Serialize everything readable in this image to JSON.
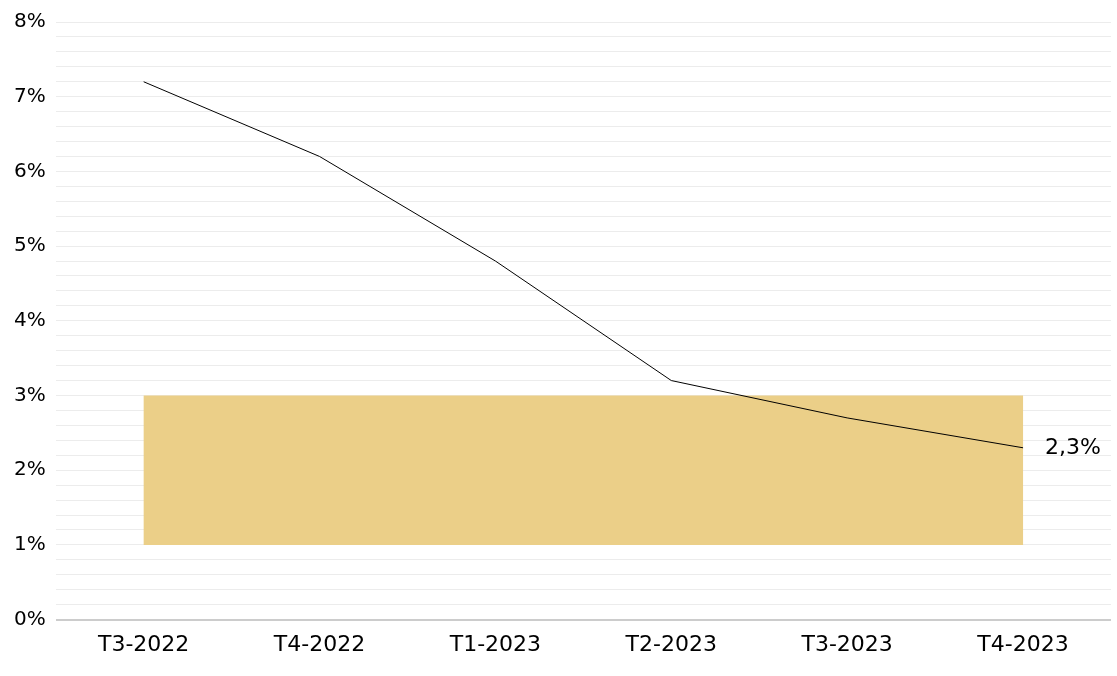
{
  "chart_data": {
    "type": "line",
    "categories": [
      "T3-2022",
      "T4-2022",
      "T1-2023",
      "T2-2023",
      "T3-2023",
      "T4-2023"
    ],
    "series": [
      {
        "color": "#000000",
        "values": [
          7.2,
          6.2,
          4.8,
          3.2,
          2.7,
          2.3
        ]
      }
    ],
    "ylim": [
      0,
      8
    ],
    "yticks": [
      {
        "value": 0,
        "label": "0%"
      },
      {
        "value": 0.2,
        "label": null
      },
      {
        "value": 0.4,
        "label": null
      },
      {
        "value": 0.6,
        "label": null
      },
      {
        "value": 0.8,
        "label": null
      },
      {
        "value": 1,
        "label": "1%"
      },
      {
        "value": 1.2,
        "label": null
      },
      {
        "value": 1.4,
        "label": null
      },
      {
        "value": 1.6,
        "label": null
      },
      {
        "value": 1.8,
        "label": null
      },
      {
        "value": 2,
        "label": "2%"
      },
      {
        "value": 2.2,
        "label": null
      },
      {
        "value": 2.4,
        "label": null
      },
      {
        "value": 2.6,
        "label": null
      },
      {
        "value": 2.8,
        "label": null
      },
      {
        "value": 3,
        "label": "3%"
      },
      {
        "value": 3.2,
        "label": null
      },
      {
        "value": 3.4,
        "label": null
      },
      {
        "value": 3.6,
        "label": null
      },
      {
        "value": 3.8,
        "label": null
      },
      {
        "value": 4,
        "label": "4%"
      },
      {
        "value": 4.2,
        "label": null
      },
      {
        "value": 4.4,
        "label": null
      },
      {
        "value": 4.6,
        "label": null
      },
      {
        "value": 4.8,
        "label": null
      },
      {
        "value": 5,
        "label": "5%"
      },
      {
        "value": 5.2,
        "label": null
      },
      {
        "value": 5.4,
        "label": null
      },
      {
        "value": 5.6,
        "label": null
      },
      {
        "value": 5.8,
        "label": null
      },
      {
        "value": 6,
        "label": "6%"
      },
      {
        "value": 6.2,
        "label": null
      },
      {
        "value": 6.4,
        "label": null
      },
      {
        "value": 6.6,
        "label": null
      },
      {
        "value": 6.8,
        "label": null
      },
      {
        "value": 7,
        "label": "7%"
      },
      {
        "value": 7.2,
        "label": null
      },
      {
        "value": 7.4,
        "label": null
      },
      {
        "value": 7.6,
        "label": null
      },
      {
        "value": 7.8,
        "label": null
      },
      {
        "value": 8,
        "label": "8%"
      }
    ],
    "bands": [
      {
        "axis": "y",
        "from": 1,
        "to": 3,
        "color": "#ebcf88"
      }
    ],
    "annotations": [
      {
        "text": "2,3%",
        "x": "T4-2023",
        "y": 2.3
      }
    ],
    "grid": "y",
    "legend": false,
    "marker": "none",
    "line_style": "solid"
  }
}
